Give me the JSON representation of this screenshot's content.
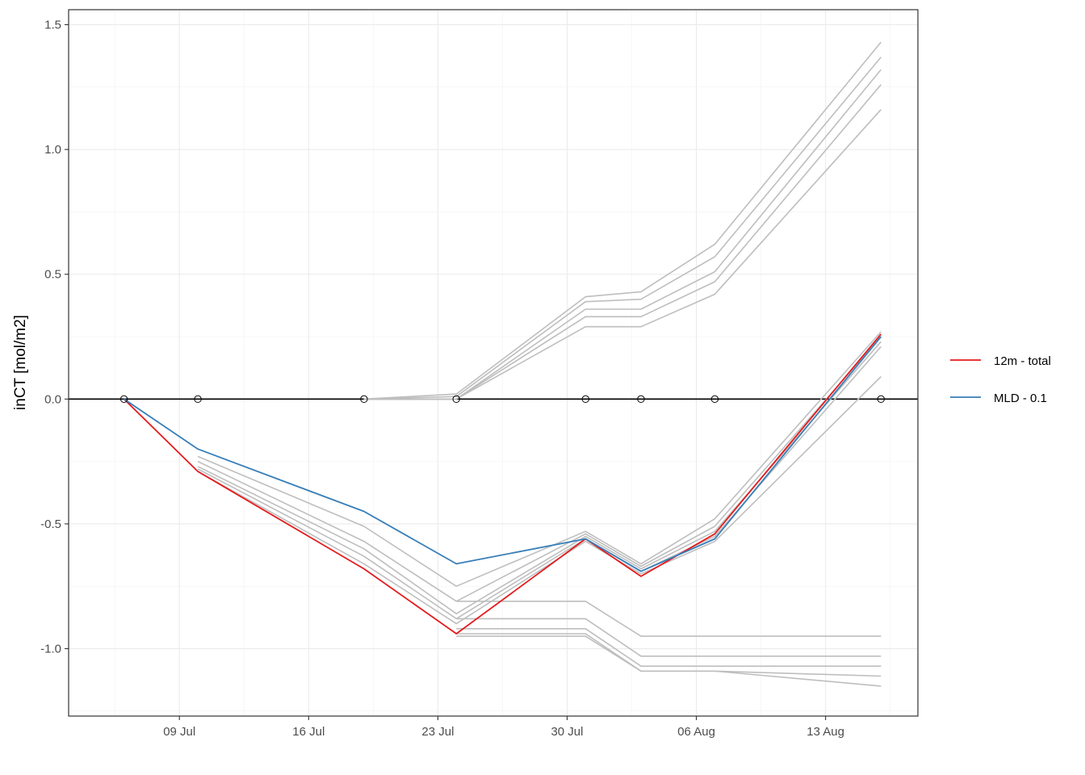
{
  "chart_data": {
    "type": "line",
    "title": "",
    "xlabel": "",
    "ylabel": "inCT [mol/m2]",
    "x_ticks": [
      "09 Jul",
      "16 Jul",
      "23 Jul",
      "30 Jul",
      "06 Aug",
      "13 Aug"
    ],
    "x_tick_dates": [
      "2019-07-09",
      "2019-07-16",
      "2019-07-23",
      "2019-07-30",
      "2019-08-06",
      "2019-08-13"
    ],
    "y_ticks": [
      "-1.0",
      "-0.5",
      "0.0",
      "0.5",
      "1.0",
      "1.5"
    ],
    "y_tick_values": [
      -1.0,
      -0.5,
      0.0,
      0.5,
      1.0,
      1.5
    ],
    "xlim": [
      "2019-07-03",
      "2019-08-18"
    ],
    "ylim": [
      -1.27,
      1.56
    ],
    "grid": true,
    "legend_position": "right",
    "zero_line": 0.0,
    "markers": {
      "x": [
        "2019-07-06",
        "2019-07-10",
        "2019-07-19",
        "2019-07-24",
        "2019-07-31",
        "2019-08-03",
        "2019-08-07",
        "2019-08-16"
      ],
      "y": [
        0,
        0,
        0,
        0,
        0,
        0,
        0,
        0
      ]
    },
    "series": [
      {
        "name": "12m - total",
        "color": "#e41a1c",
        "highlight": true,
        "x": [
          "2019-07-06",
          "2019-07-10",
          "2019-07-19",
          "2019-07-24",
          "2019-07-31",
          "2019-08-03",
          "2019-08-07",
          "2019-08-16"
        ],
        "y": [
          0.0,
          -0.29,
          -0.68,
          -0.94,
          -0.56,
          -0.71,
          -0.54,
          0.26
        ]
      },
      {
        "name": "MLD - 0.1",
        "color": "#377eb8",
        "highlight": true,
        "x": [
          "2019-07-06",
          "2019-07-10",
          "2019-07-19",
          "2019-07-24",
          "2019-07-31",
          "2019-08-03",
          "2019-08-07",
          "2019-08-16"
        ],
        "y": [
          0.0,
          -0.2,
          -0.45,
          -0.66,
          -0.56,
          -0.69,
          -0.56,
          0.25
        ]
      },
      {
        "color": "#bebebe",
        "highlight": false,
        "x": [
          "2019-07-19",
          "2019-07-24",
          "2019-07-31",
          "2019-08-03",
          "2019-08-07",
          "2019-08-16"
        ],
        "y": [
          0.0,
          0.02,
          0.41,
          0.43,
          0.62,
          1.43
        ]
      },
      {
        "color": "#bebebe",
        "highlight": false,
        "x": [
          "2019-07-19",
          "2019-07-24",
          "2019-07-31",
          "2019-08-03",
          "2019-08-07",
          "2019-08-16"
        ],
        "y": [
          0.0,
          0.01,
          0.39,
          0.4,
          0.57,
          1.37
        ]
      },
      {
        "color": "#bebebe",
        "highlight": false,
        "x": [
          "2019-07-19",
          "2019-07-24",
          "2019-07-31",
          "2019-08-03",
          "2019-08-07",
          "2019-08-16"
        ],
        "y": [
          0.0,
          0.0,
          0.36,
          0.36,
          0.51,
          1.32
        ]
      },
      {
        "color": "#bebebe",
        "highlight": false,
        "x": [
          "2019-07-19",
          "2019-07-24",
          "2019-07-31",
          "2019-08-03",
          "2019-08-07",
          "2019-08-16"
        ],
        "y": [
          0.0,
          0.0,
          0.33,
          0.33,
          0.47,
          1.26
        ]
      },
      {
        "color": "#bebebe",
        "highlight": false,
        "x": [
          "2019-07-19",
          "2019-07-24",
          "2019-07-31",
          "2019-08-03",
          "2019-08-07",
          "2019-08-16"
        ],
        "y": [
          0.0,
          0.0,
          0.29,
          0.29,
          0.42,
          1.16
        ]
      },
      {
        "color": "#bebebe",
        "highlight": false,
        "x": [
          "2019-07-10",
          "2019-07-19",
          "2019-07-24",
          "2019-07-31",
          "2019-08-03",
          "2019-08-07",
          "2019-08-16"
        ],
        "y": [
          -0.23,
          -0.51,
          -0.75,
          -0.53,
          -0.66,
          -0.48,
          0.27
        ]
      },
      {
        "color": "#bebebe",
        "highlight": false,
        "x": [
          "2019-07-10",
          "2019-07-19",
          "2019-07-24",
          "2019-07-31",
          "2019-08-03",
          "2019-08-07",
          "2019-08-16"
        ],
        "y": [
          -0.25,
          -0.57,
          -0.81,
          -0.54,
          -0.67,
          -0.51,
          0.25
        ]
      },
      {
        "color": "#bebebe",
        "highlight": false,
        "x": [
          "2019-07-10",
          "2019-07-19",
          "2019-07-24",
          "2019-07-31",
          "2019-08-03",
          "2019-08-07",
          "2019-08-16"
        ],
        "y": [
          -0.27,
          -0.6,
          -0.86,
          -0.55,
          -0.68,
          -0.53,
          0.23
        ]
      },
      {
        "color": "#bebebe",
        "highlight": false,
        "x": [
          "2019-07-10",
          "2019-07-19",
          "2019-07-24",
          "2019-07-31",
          "2019-08-03",
          "2019-08-07",
          "2019-08-16"
        ],
        "y": [
          -0.28,
          -0.63,
          -0.88,
          -0.56,
          -0.69,
          -0.55,
          0.21
        ]
      },
      {
        "color": "#bebebe",
        "highlight": false,
        "x": [
          "2019-07-10",
          "2019-07-19",
          "2019-07-24",
          "2019-07-31",
          "2019-08-03",
          "2019-08-07",
          "2019-08-16"
        ],
        "y": [
          -0.29,
          -0.66,
          -0.9,
          -0.57,
          -0.7,
          -0.57,
          0.09
        ]
      },
      {
        "color": "#bebebe",
        "highlight": false,
        "x": [
          "2019-07-24",
          "2019-07-31",
          "2019-08-03",
          "2019-08-07",
          "2019-08-16"
        ],
        "y": [
          -0.81,
          -0.81,
          -0.95,
          -0.95,
          -0.95
        ]
      },
      {
        "color": "#bebebe",
        "highlight": false,
        "x": [
          "2019-07-24",
          "2019-07-31",
          "2019-08-03",
          "2019-08-07",
          "2019-08-16"
        ],
        "y": [
          -0.88,
          -0.88,
          -1.03,
          -1.03,
          -1.03
        ]
      },
      {
        "color": "#bebebe",
        "highlight": false,
        "x": [
          "2019-07-24",
          "2019-07-31",
          "2019-08-03",
          "2019-08-07",
          "2019-08-16"
        ],
        "y": [
          -0.92,
          -0.92,
          -1.07,
          -1.07,
          -1.07
        ]
      },
      {
        "color": "#bebebe",
        "highlight": false,
        "x": [
          "2019-07-24",
          "2019-07-31",
          "2019-08-03",
          "2019-08-07",
          "2019-08-16"
        ],
        "y": [
          -0.94,
          -0.94,
          -1.09,
          -1.09,
          -1.11
        ]
      },
      {
        "color": "#bebebe",
        "highlight": false,
        "x": [
          "2019-07-24",
          "2019-07-31",
          "2019-08-03",
          "2019-08-07",
          "2019-08-16"
        ],
        "y": [
          -0.95,
          -0.95,
          -1.09,
          -1.09,
          -1.15
        ]
      }
    ]
  }
}
